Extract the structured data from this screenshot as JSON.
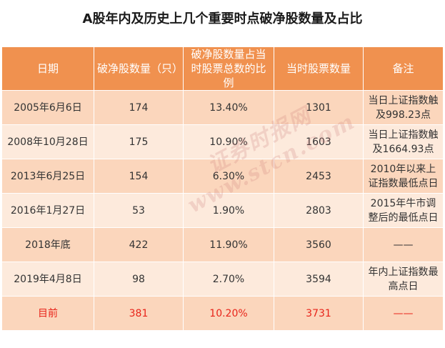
{
  "title": "A股年内及历史上几个重要时点破净股数量及占比",
  "headers": [
    "日期",
    "破净股数量（只）",
    "破净股数量占当时股票总数的比例",
    "当时股票数量",
    "备注"
  ],
  "rows": [
    {
      "date": "2005年6月6日",
      "count": "174",
      "ratio": "13.40%",
      "total": "1301",
      "note": "当日上证指数触及998.23点"
    },
    {
      "date": "2008年10月28日",
      "count": "175",
      "ratio": "10.90%",
      "total": "1603",
      "note": "当日上证指数触及1664.93点"
    },
    {
      "date": "2013年6月25日",
      "count": "154",
      "ratio": "6.30%",
      "total": "2453",
      "note": "2010年以来上证指数最低点日"
    },
    {
      "date": "2016年1月27日",
      "count": "53",
      "ratio": "1.90%",
      "total": "2803",
      "note": "2015年牛市调整后的最低点日"
    },
    {
      "date": "2018年底",
      "count": "422",
      "ratio": "11.90%",
      "total": "3560",
      "note": "——"
    },
    {
      "date": "2019年4月8日",
      "count": "98",
      "ratio": "2.70%",
      "total": "3594",
      "note": "年内上证指数最高点日"
    },
    {
      "date": "目前",
      "count": "381",
      "ratio": "10.20%",
      "total": "3731",
      "note": "——"
    }
  ],
  "watermark": "证券时报网 www.stcn.com",
  "colors": {
    "header_bg": "#f0914f",
    "row_odd": "#fbd6bc",
    "row_even": "#fdeadc",
    "highlight_text": "#e8241a"
  }
}
